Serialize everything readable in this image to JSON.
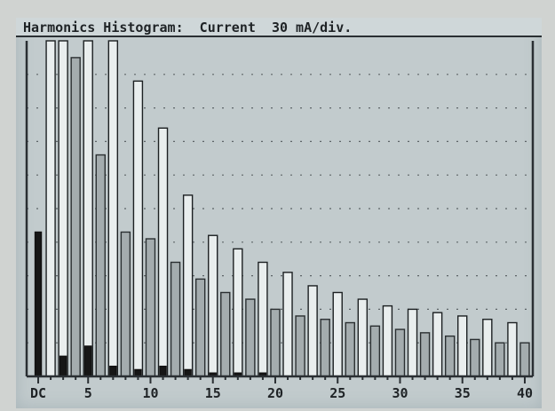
{
  "screen": {
    "title": "Harmonics Histogram:  Current  30 mA/div."
  },
  "colors": {
    "background": "#c2cbcd",
    "phase_a_fill": "#e9eeee",
    "phase_b_fill": "#a4acae",
    "phase_c_fill": "#161616",
    "grid": "#3c4246",
    "frame": "#2a2f33"
  },
  "chart_data": {
    "type": "bar",
    "title": "Harmonics Histogram:  Current  30 mA/div.",
    "xlabel": "",
    "ylabel": "",
    "categories": [
      "DC",
      "2",
      "3",
      "4",
      "5",
      "6",
      "7",
      "8",
      "9",
      "10",
      "11",
      "12",
      "13",
      "14",
      "15",
      "16",
      "17",
      "18",
      "19",
      "20",
      "21",
      "22",
      "23",
      "24",
      "25",
      "26",
      "27",
      "28",
      "29",
      "30",
      "31",
      "32",
      "33",
      "34",
      "35",
      "36",
      "37",
      "38",
      "39",
      "40"
    ],
    "x_tick_labels": [
      "DC",
      "5",
      "10",
      "15",
      "20",
      "25",
      "30",
      "35",
      "40"
    ],
    "y_divisions": 10,
    "y_unit_per_div": "30 mA",
    "grid": true,
    "series": [
      {
        "values": [
          0,
          10,
          10,
          0,
          10,
          0,
          10,
          0,
          8.8,
          0,
          7.4,
          0,
          5.4,
          0,
          4.2,
          0,
          3.8,
          0,
          3.4,
          0,
          3.1,
          0,
          2.7,
          0,
          2.5,
          0,
          2.3,
          0,
          2.1,
          0,
          2.0,
          0,
          1.9,
          0,
          1.8,
          0,
          1.7,
          0,
          1.6,
          0
        ]
      },
      {
        "values": [
          0,
          0,
          0,
          9.5,
          0,
          6.6,
          0,
          4.3,
          0,
          4.1,
          0,
          3.4,
          0,
          2.9,
          0,
          2.5,
          0,
          2.3,
          0,
          2.0,
          0,
          1.8,
          0,
          1.7,
          0,
          1.6,
          0,
          1.5,
          0,
          1.4,
          0,
          1.3,
          0,
          1.2,
          0,
          1.1,
          0,
          1.0,
          0,
          1.0
        ]
      },
      {
        "values": [
          4.3,
          0,
          0.6,
          0,
          0.9,
          0,
          0.3,
          0,
          0.2,
          0,
          0.3,
          0,
          0.2,
          0,
          0.1,
          0,
          0.1,
          0,
          0.1,
          0,
          0,
          0,
          0,
          0,
          0,
          0,
          0,
          0,
          0,
          0,
          0,
          0,
          0,
          0,
          0,
          0,
          0,
          0,
          0,
          0
        ]
      }
    ]
  }
}
